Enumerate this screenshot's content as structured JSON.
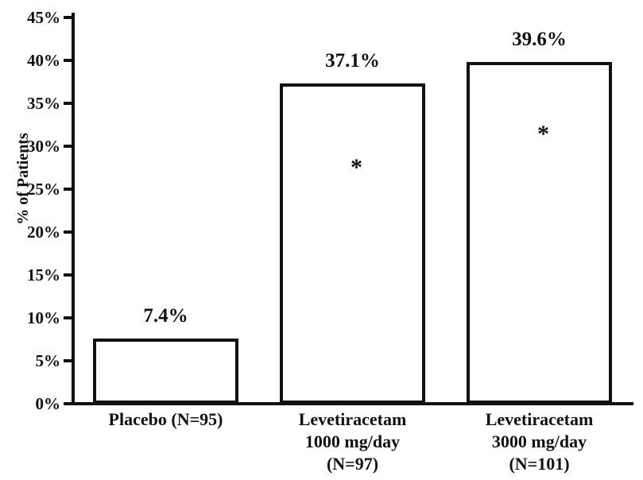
{
  "chart_data": {
    "type": "bar",
    "title": "",
    "xlabel": "",
    "ylabel": "% of Patients",
    "ylim": [
      0,
      45
    ],
    "ytick_step": 5,
    "ytick_labels": [
      "0%",
      "5%",
      "10%",
      "15%",
      "20%",
      "25%",
      "30%",
      "35%",
      "40%",
      "45%"
    ],
    "grid": false,
    "legend": false,
    "bar_fill": "#ffffff",
    "bar_border": "#111111",
    "axis_color": "#111111",
    "significance_marker": "*",
    "categories": [
      "Placebo (N=95)",
      "Levetiracetam 1000 mg/day (N=97)",
      "Levetiracetam 3000 mg/day (N=101)"
    ],
    "bars": [
      {
        "label_lines": [
          "Placebo (N=95)"
        ],
        "value": 7.4,
        "value_label": "7.4%",
        "significant": false,
        "star_y_pct": null
      },
      {
        "label_lines": [
          "Levetiracetam",
          "1000 mg/day",
          "(N=97)"
        ],
        "value": 37.1,
        "value_label": "37.1%",
        "significant": true,
        "star_y_pct": 27.8
      },
      {
        "label_lines": [
          "Levetiracetam",
          "3000 mg/day",
          "(N=101)"
        ],
        "value": 39.6,
        "value_label": "39.6%",
        "significant": true,
        "star_y_pct": 31.7
      }
    ]
  }
}
